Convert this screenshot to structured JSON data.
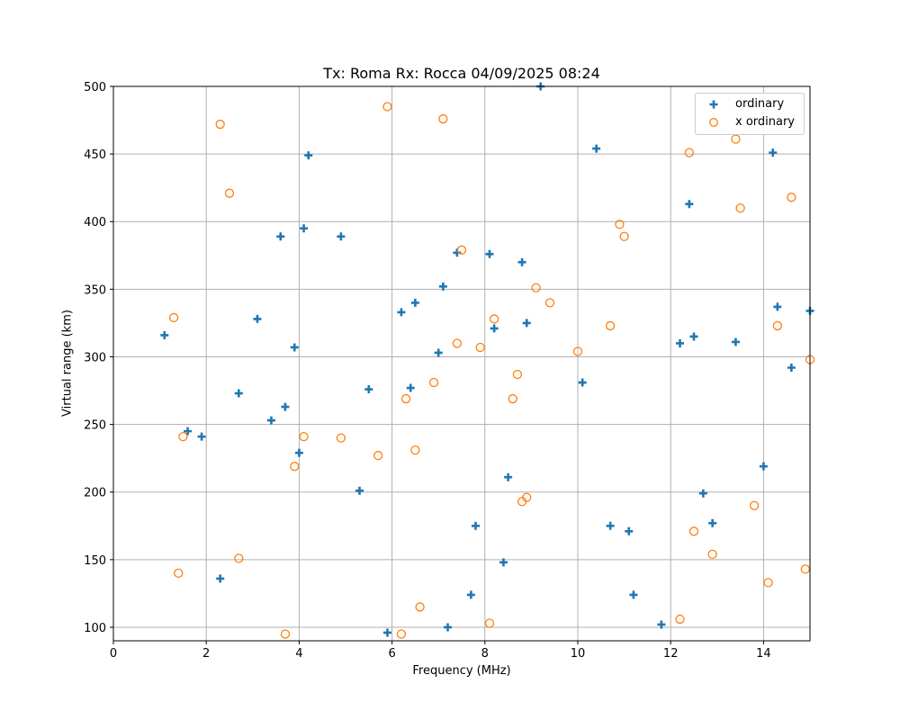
{
  "chart_data": {
    "type": "scatter",
    "title": "Tx: Roma Rx: Rocca 04/09/2025 08:24",
    "xlabel": "Frequency (MHz)",
    "ylabel": "Virtual range (km)",
    "xlim": [
      0,
      15
    ],
    "ylim": [
      90,
      500
    ],
    "xticks": [
      0,
      2,
      4,
      6,
      8,
      10,
      12,
      14
    ],
    "yticks": [
      100,
      150,
      200,
      250,
      300,
      350,
      400,
      450,
      500
    ],
    "grid": true,
    "legend_position": "upper right",
    "series": [
      {
        "name": "ordinary",
        "marker": "plus",
        "color": "#1f77b4",
        "points": [
          [
            1.1,
            316
          ],
          [
            1.6,
            245
          ],
          [
            1.9,
            241
          ],
          [
            2.3,
            136
          ],
          [
            2.7,
            273
          ],
          [
            3.1,
            328
          ],
          [
            3.4,
            253
          ],
          [
            3.6,
            389
          ],
          [
            3.7,
            263
          ],
          [
            3.9,
            307
          ],
          [
            4.0,
            229
          ],
          [
            4.1,
            395
          ],
          [
            4.2,
            449
          ],
          [
            4.9,
            389
          ],
          [
            5.3,
            201
          ],
          [
            5.5,
            276
          ],
          [
            5.9,
            96
          ],
          [
            6.2,
            333
          ],
          [
            6.4,
            277
          ],
          [
            6.5,
            340
          ],
          [
            7.0,
            303
          ],
          [
            7.1,
            352
          ],
          [
            7.2,
            100
          ],
          [
            7.4,
            377
          ],
          [
            7.7,
            124
          ],
          [
            7.8,
            175
          ],
          [
            8.1,
            376
          ],
          [
            8.2,
            321
          ],
          [
            8.4,
            148
          ],
          [
            8.5,
            211
          ],
          [
            8.8,
            370
          ],
          [
            8.9,
            325
          ],
          [
            9.2,
            500
          ],
          [
            10.1,
            281
          ],
          [
            10.4,
            454
          ],
          [
            10.7,
            175
          ],
          [
            11.1,
            171
          ],
          [
            11.2,
            124
          ],
          [
            11.8,
            102
          ],
          [
            12.2,
            310
          ],
          [
            12.4,
            413
          ],
          [
            12.5,
            315
          ],
          [
            12.7,
            199
          ],
          [
            12.9,
            177
          ],
          [
            13.4,
            311
          ],
          [
            14.0,
            219
          ],
          [
            14.2,
            451
          ],
          [
            14.3,
            337
          ],
          [
            14.6,
            292
          ],
          [
            15.0,
            334
          ]
        ]
      },
      {
        "name": "x ordinary",
        "marker": "circle",
        "color": "#ff7f0e",
        "points": [
          [
            1.3,
            329
          ],
          [
            1.4,
            140
          ],
          [
            1.5,
            241
          ],
          [
            2.3,
            472
          ],
          [
            2.5,
            421
          ],
          [
            2.7,
            151
          ],
          [
            3.7,
            95
          ],
          [
            3.9,
            219
          ],
          [
            4.1,
            241
          ],
          [
            4.9,
            240
          ],
          [
            5.7,
            227
          ],
          [
            5.9,
            485
          ],
          [
            6.2,
            95
          ],
          [
            6.3,
            269
          ],
          [
            6.5,
            231
          ],
          [
            6.6,
            115
          ],
          [
            6.9,
            281
          ],
          [
            7.1,
            476
          ],
          [
            7.4,
            310
          ],
          [
            7.5,
            379
          ],
          [
            7.9,
            307
          ],
          [
            8.1,
            103
          ],
          [
            8.2,
            328
          ],
          [
            8.6,
            269
          ],
          [
            8.7,
            287
          ],
          [
            8.8,
            193
          ],
          [
            8.9,
            196
          ],
          [
            9.1,
            351
          ],
          [
            9.4,
            340
          ],
          [
            10.0,
            304
          ],
          [
            10.7,
            323
          ],
          [
            10.9,
            398
          ],
          [
            11.0,
            389
          ],
          [
            12.2,
            106
          ],
          [
            12.4,
            451
          ],
          [
            12.5,
            171
          ],
          [
            12.9,
            154
          ],
          [
            13.4,
            461
          ],
          [
            13.5,
            410
          ],
          [
            13.8,
            190
          ],
          [
            14.1,
            133
          ],
          [
            14.3,
            323
          ],
          [
            14.6,
            418
          ],
          [
            14.9,
            143
          ],
          [
            15.0,
            298
          ]
        ]
      }
    ]
  },
  "legend": {
    "items": [
      {
        "label": "ordinary"
      },
      {
        "label": "x ordinary"
      }
    ]
  }
}
